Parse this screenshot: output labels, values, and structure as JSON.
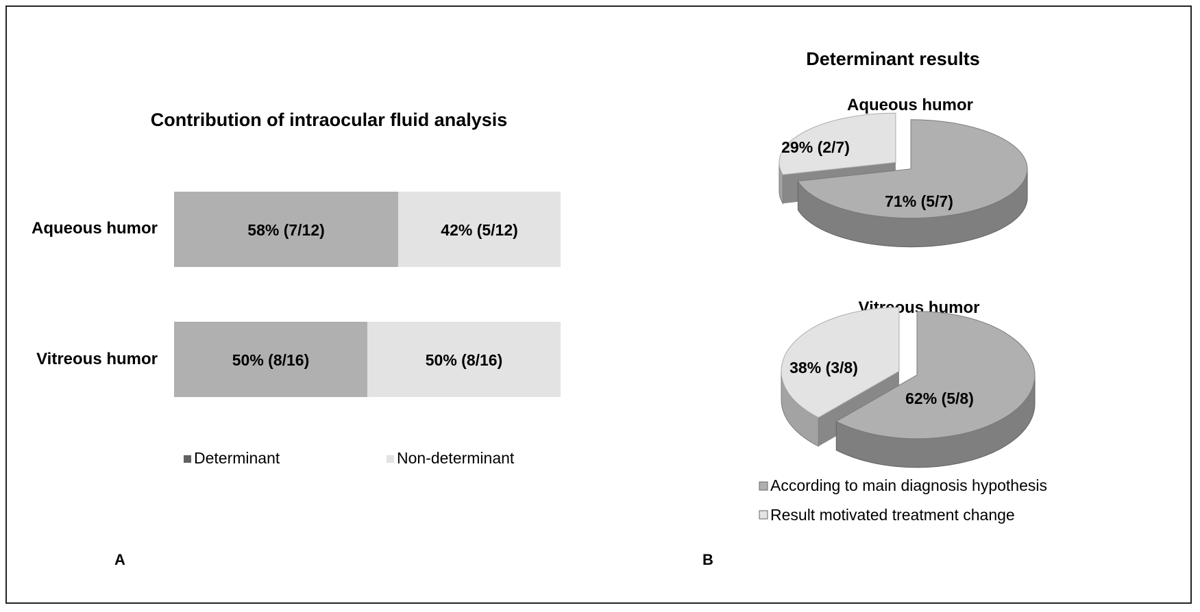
{
  "panel_labels": {
    "a": "A",
    "b": "B"
  },
  "colors": {
    "determinant": "#b0b0b0",
    "non_determinant": "#e3e3e3",
    "frame": "#222222"
  },
  "chart_data": [
    {
      "type": "bar",
      "stacked": true,
      "orientation": "horizontal",
      "percent_of_total": true,
      "title": "Contribution of intraocular fluid analysis",
      "categories": [
        "Aqueous humor",
        "Vitreous humor"
      ],
      "series": [
        {
          "name": "Determinant",
          "values": [
            58,
            50
          ],
          "labels": [
            "58% (7/12)",
            "50% (8/16)"
          ],
          "color": "#b0b0b0"
        },
        {
          "name": "Non-determinant",
          "values": [
            42,
            50
          ],
          "labels": [
            "42% (5/12)",
            "50% (8/16)"
          ],
          "color": "#e3e3e3"
        }
      ],
      "legend": "bottom",
      "grid": false,
      "xlim": [
        0,
        100
      ]
    },
    {
      "type": "pie",
      "super_title": "Determinant results",
      "title": "Aqueous humor",
      "style": "3d-exploded",
      "slices": [
        {
          "name": "According to main diagnosis hypothesis",
          "value": 71,
          "label": "71% (5/7)",
          "color": "#b0b0b0"
        },
        {
          "name": "Result motivated treatment change",
          "value": 29,
          "label": "29% (2/7)",
          "color": "#e3e3e3"
        }
      ]
    },
    {
      "type": "pie",
      "title": "Vitreous humor",
      "style": "3d-exploded",
      "slices": [
        {
          "name": "According to main diagnosis hypothesis",
          "value": 62,
          "label": "62% (5/8)",
          "color": "#b0b0b0"
        },
        {
          "name": "Result motivated treatment change",
          "value": 38,
          "label": "38% (3/8)",
          "color": "#e3e3e3"
        }
      ],
      "legend": "bottom",
      "legend_entries": [
        "According to main diagnosis hypothesis",
        "Result motivated treatment change"
      ]
    }
  ]
}
